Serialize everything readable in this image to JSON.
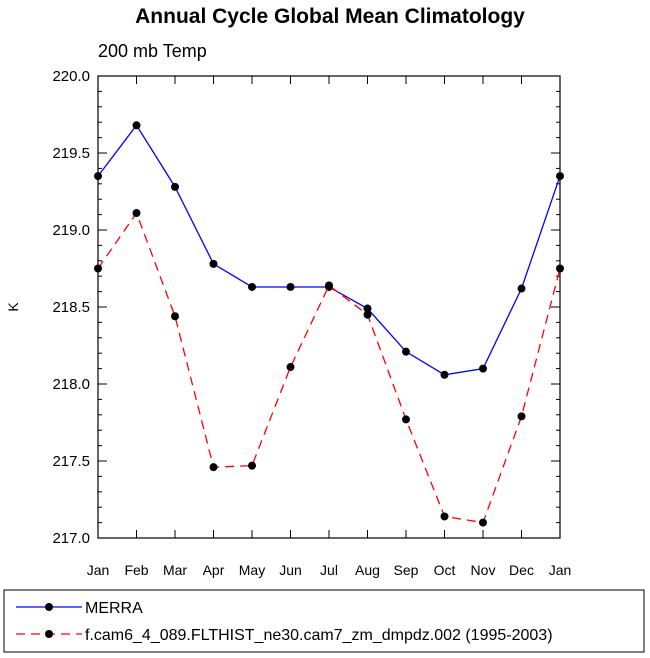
{
  "chart_data": {
    "type": "line",
    "title": "Annual Cycle Global Mean Climatology",
    "subtitle": "200 mb Temp",
    "ylabel": "K",
    "xlabel": "",
    "categories": [
      "Jan",
      "Feb",
      "Mar",
      "Apr",
      "May",
      "Jun",
      "Jul",
      "Aug",
      "Sep",
      "Oct",
      "Nov",
      "Dec",
      "Jan"
    ],
    "ylim": [
      217.0,
      220.0
    ],
    "yticks": [
      "217.0",
      "217.5",
      "218.0",
      "218.5",
      "219.0",
      "219.5",
      "220.0"
    ],
    "series": [
      {
        "name": "MERRA",
        "color": "#0000ff",
        "dash": "solid",
        "values": [
          219.35,
          219.68,
          219.28,
          218.78,
          218.63,
          218.63,
          218.63,
          218.49,
          218.21,
          218.06,
          218.1,
          218.62,
          219.35
        ]
      },
      {
        "name": "f.cam6_4_089.FLTHIST_ne30.cam7_zm_dmpdz.002 (1995-2003)",
        "color": "#ff0000",
        "dash": "dashed",
        "values": [
          218.75,
          219.11,
          218.44,
          217.46,
          217.47,
          218.11,
          218.64,
          218.45,
          217.77,
          217.14,
          217.1,
          217.79,
          218.75
        ]
      }
    ]
  }
}
